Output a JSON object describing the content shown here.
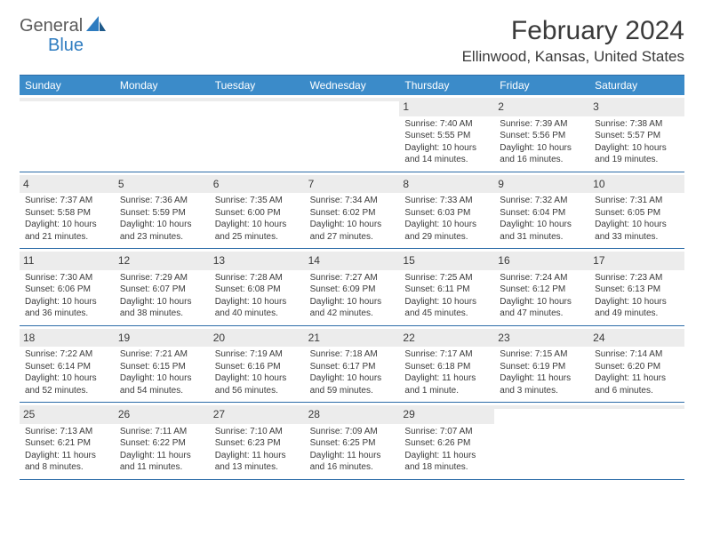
{
  "logo": {
    "text1": "General",
    "text2": "Blue"
  },
  "title": "February 2024",
  "location": "Ellinwood, Kansas, United States",
  "dow": [
    "Sunday",
    "Monday",
    "Tuesday",
    "Wednesday",
    "Thursday",
    "Friday",
    "Saturday"
  ],
  "colors": {
    "header_bg": "#3b8bc9",
    "rule": "#2c6ca8",
    "daynum_bg": "#ececec",
    "text": "#3a3a3a",
    "logo_blue": "#2e7cc0",
    "logo_gray": "#5a5a5a"
  },
  "first_dow_index": 4,
  "days": [
    {
      "n": 1,
      "sr": "7:40 AM",
      "ss": "5:55 PM",
      "dl": "10 hours and 14 minutes."
    },
    {
      "n": 2,
      "sr": "7:39 AM",
      "ss": "5:56 PM",
      "dl": "10 hours and 16 minutes."
    },
    {
      "n": 3,
      "sr": "7:38 AM",
      "ss": "5:57 PM",
      "dl": "10 hours and 19 minutes."
    },
    {
      "n": 4,
      "sr": "7:37 AM",
      "ss": "5:58 PM",
      "dl": "10 hours and 21 minutes."
    },
    {
      "n": 5,
      "sr": "7:36 AM",
      "ss": "5:59 PM",
      "dl": "10 hours and 23 minutes."
    },
    {
      "n": 6,
      "sr": "7:35 AM",
      "ss": "6:00 PM",
      "dl": "10 hours and 25 minutes."
    },
    {
      "n": 7,
      "sr": "7:34 AM",
      "ss": "6:02 PM",
      "dl": "10 hours and 27 minutes."
    },
    {
      "n": 8,
      "sr": "7:33 AM",
      "ss": "6:03 PM",
      "dl": "10 hours and 29 minutes."
    },
    {
      "n": 9,
      "sr": "7:32 AM",
      "ss": "6:04 PM",
      "dl": "10 hours and 31 minutes."
    },
    {
      "n": 10,
      "sr": "7:31 AM",
      "ss": "6:05 PM",
      "dl": "10 hours and 33 minutes."
    },
    {
      "n": 11,
      "sr": "7:30 AM",
      "ss": "6:06 PM",
      "dl": "10 hours and 36 minutes."
    },
    {
      "n": 12,
      "sr": "7:29 AM",
      "ss": "6:07 PM",
      "dl": "10 hours and 38 minutes."
    },
    {
      "n": 13,
      "sr": "7:28 AM",
      "ss": "6:08 PM",
      "dl": "10 hours and 40 minutes."
    },
    {
      "n": 14,
      "sr": "7:27 AM",
      "ss": "6:09 PM",
      "dl": "10 hours and 42 minutes."
    },
    {
      "n": 15,
      "sr": "7:25 AM",
      "ss": "6:11 PM",
      "dl": "10 hours and 45 minutes."
    },
    {
      "n": 16,
      "sr": "7:24 AM",
      "ss": "6:12 PM",
      "dl": "10 hours and 47 minutes."
    },
    {
      "n": 17,
      "sr": "7:23 AM",
      "ss": "6:13 PM",
      "dl": "10 hours and 49 minutes."
    },
    {
      "n": 18,
      "sr": "7:22 AM",
      "ss": "6:14 PM",
      "dl": "10 hours and 52 minutes."
    },
    {
      "n": 19,
      "sr": "7:21 AM",
      "ss": "6:15 PM",
      "dl": "10 hours and 54 minutes."
    },
    {
      "n": 20,
      "sr": "7:19 AM",
      "ss": "6:16 PM",
      "dl": "10 hours and 56 minutes."
    },
    {
      "n": 21,
      "sr": "7:18 AM",
      "ss": "6:17 PM",
      "dl": "10 hours and 59 minutes."
    },
    {
      "n": 22,
      "sr": "7:17 AM",
      "ss": "6:18 PM",
      "dl": "11 hours and 1 minute."
    },
    {
      "n": 23,
      "sr": "7:15 AM",
      "ss": "6:19 PM",
      "dl": "11 hours and 3 minutes."
    },
    {
      "n": 24,
      "sr": "7:14 AM",
      "ss": "6:20 PM",
      "dl": "11 hours and 6 minutes."
    },
    {
      "n": 25,
      "sr": "7:13 AM",
      "ss": "6:21 PM",
      "dl": "11 hours and 8 minutes."
    },
    {
      "n": 26,
      "sr": "7:11 AM",
      "ss": "6:22 PM",
      "dl": "11 hours and 11 minutes."
    },
    {
      "n": 27,
      "sr": "7:10 AM",
      "ss": "6:23 PM",
      "dl": "11 hours and 13 minutes."
    },
    {
      "n": 28,
      "sr": "7:09 AM",
      "ss": "6:25 PM",
      "dl": "11 hours and 16 minutes."
    },
    {
      "n": 29,
      "sr": "7:07 AM",
      "ss": "6:26 PM",
      "dl": "11 hours and 18 minutes."
    }
  ],
  "labels": {
    "sunrise": "Sunrise:",
    "sunset": "Sunset:",
    "daylight": "Daylight:"
  }
}
